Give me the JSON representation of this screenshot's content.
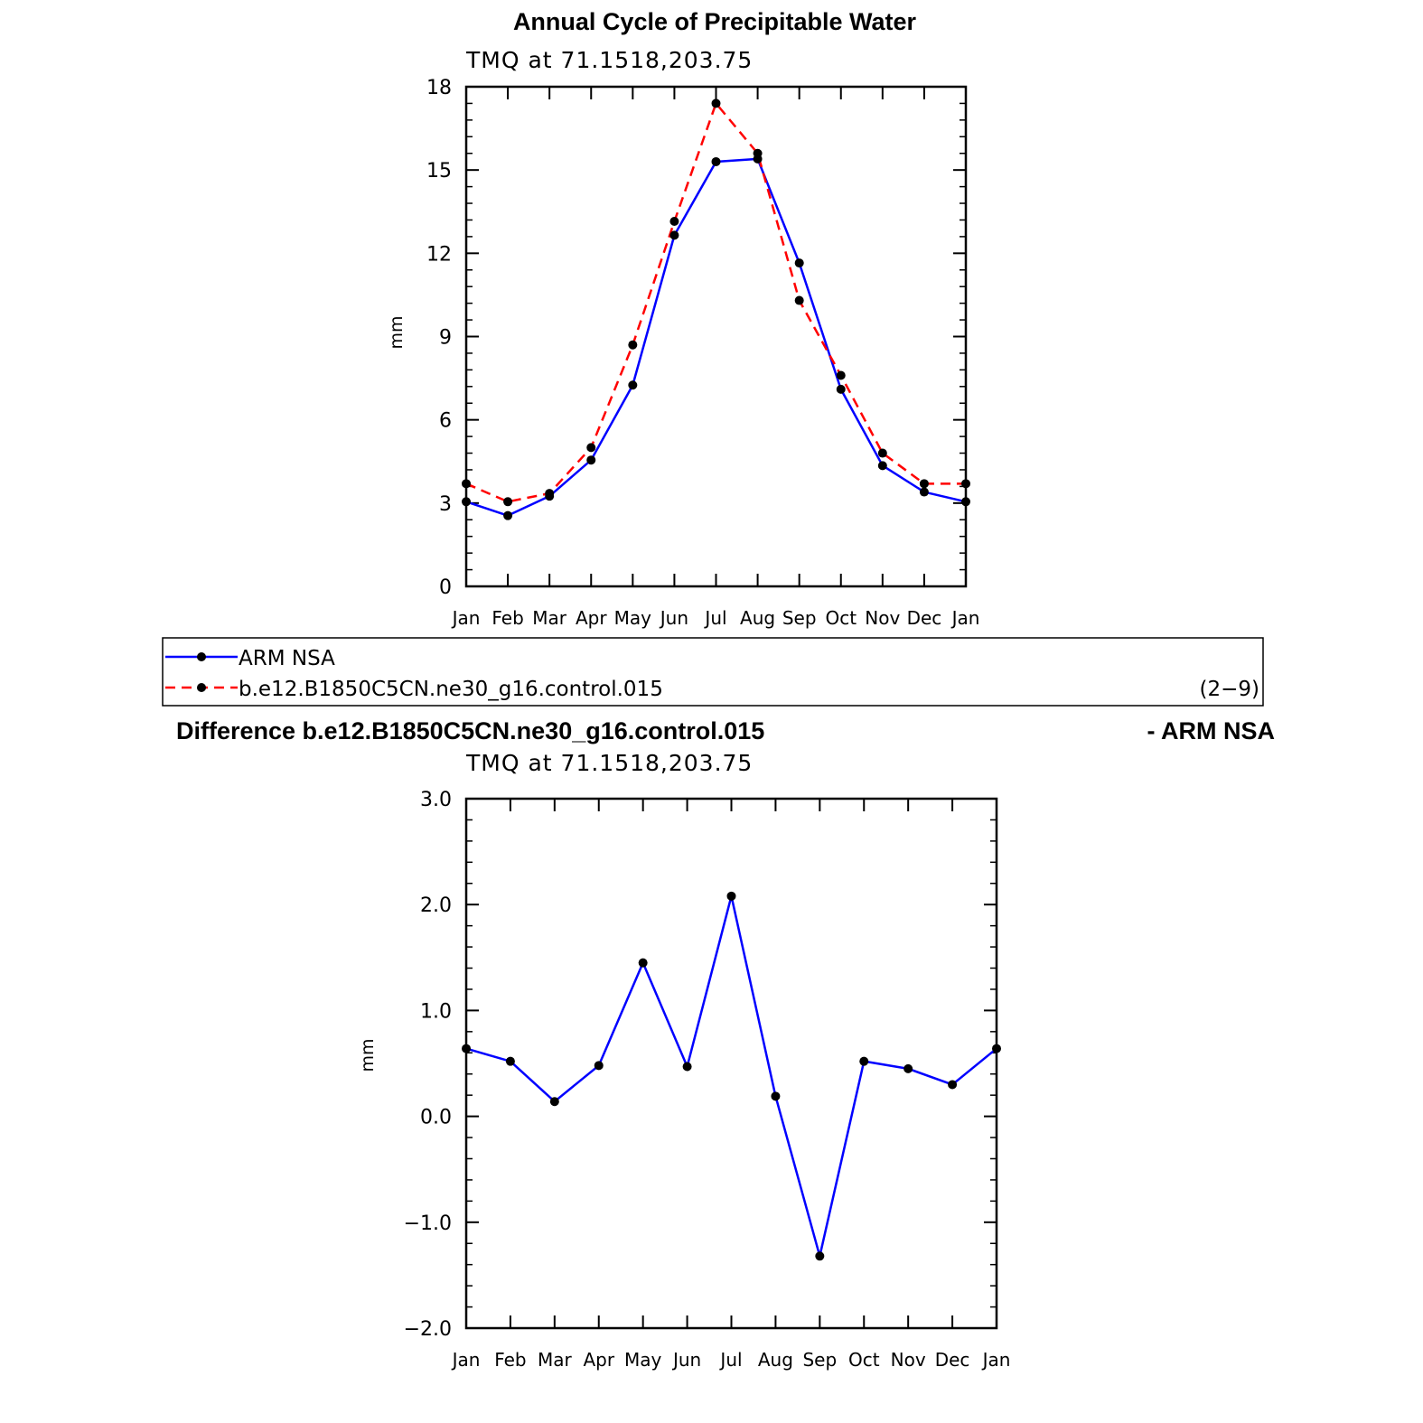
{
  "chart_data": [
    {
      "type": "line",
      "title": "Annual Cycle of Precipitable Water",
      "subtitle": "TMQ  at  71.1518,203.75",
      "xlabel": "",
      "ylabel": "mm",
      "ylim": [
        0,
        18
      ],
      "yticks": [
        "0",
        "3",
        "6",
        "9",
        "12",
        "15",
        "18"
      ],
      "categories": [
        "Jan",
        "Feb",
        "Mar",
        "Apr",
        "May",
        "Jun",
        "Jul",
        "Aug",
        "Sep",
        "Oct",
        "Nov",
        "Dec",
        "Jan"
      ],
      "grid": false,
      "legend_position": "bottom",
      "series": [
        {
          "name": "ARM  NSA",
          "color": "#0000ff",
          "dash": "solid",
          "values": [
            3.05,
            2.55,
            3.25,
            4.55,
            7.25,
            12.65,
            15.3,
            15.4,
            11.65,
            7.1,
            4.35,
            3.4,
            3.05
          ]
        },
        {
          "name": "b.e12.B1850C5CN.ne30_g16.control.015",
          "color": "#ff0000",
          "dash": "dashed",
          "values": [
            3.7,
            3.05,
            3.35,
            5.0,
            8.7,
            13.15,
            17.4,
            15.6,
            10.3,
            7.6,
            4.8,
            3.7,
            3.7
          ]
        }
      ],
      "legend_note": "(2−9)"
    },
    {
      "type": "line",
      "title": "Difference b.e12.B1850C5CN.ne30_g16.control.015",
      "title_right": "- ARM NSA",
      "subtitle": "TMQ  at  71.1518,203.75",
      "xlabel": "",
      "ylabel": "mm",
      "ylim": [
        -2.0,
        3.0
      ],
      "yticks": [
        "−2.0",
        "−1.0",
        "0.0",
        "1.0",
        "2.0",
        "3.0"
      ],
      "categories": [
        "Jan",
        "Feb",
        "Mar",
        "Apr",
        "May",
        "Jun",
        "Jul",
        "Aug",
        "Sep",
        "Oct",
        "Nov",
        "Dec",
        "Jan"
      ],
      "grid": false,
      "series": [
        {
          "color": "#0000ff",
          "dash": "solid",
          "values": [
            0.64,
            0.52,
            0.14,
            0.48,
            1.45,
            0.47,
            2.08,
            0.19,
            -1.32,
            0.52,
            0.45,
            0.3,
            0.64
          ]
        }
      ]
    }
  ]
}
